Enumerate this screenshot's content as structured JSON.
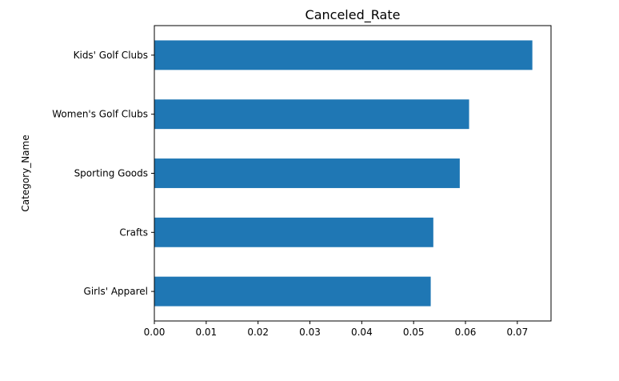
{
  "chart_data": {
    "type": "bar",
    "orientation": "horizontal",
    "title": "Canceled_Rate",
    "xlabel": "",
    "ylabel": "Category_Name",
    "categories": [
      "Girls' Apparel",
      "Crafts",
      "Sporting Goods",
      "Women's Golf Clubs",
      "Kids' Golf Clubs"
    ],
    "values": [
      0.0533,
      0.0538,
      0.0589,
      0.0607,
      0.0729
    ],
    "xlim": [
      0,
      0.0765
    ],
    "xticks": [
      "0.00",
      "0.01",
      "0.02",
      "0.03",
      "0.04",
      "0.05",
      "0.06",
      "0.07"
    ],
    "bar_color": "#1f77b4",
    "grid": false,
    "legend": "none"
  }
}
